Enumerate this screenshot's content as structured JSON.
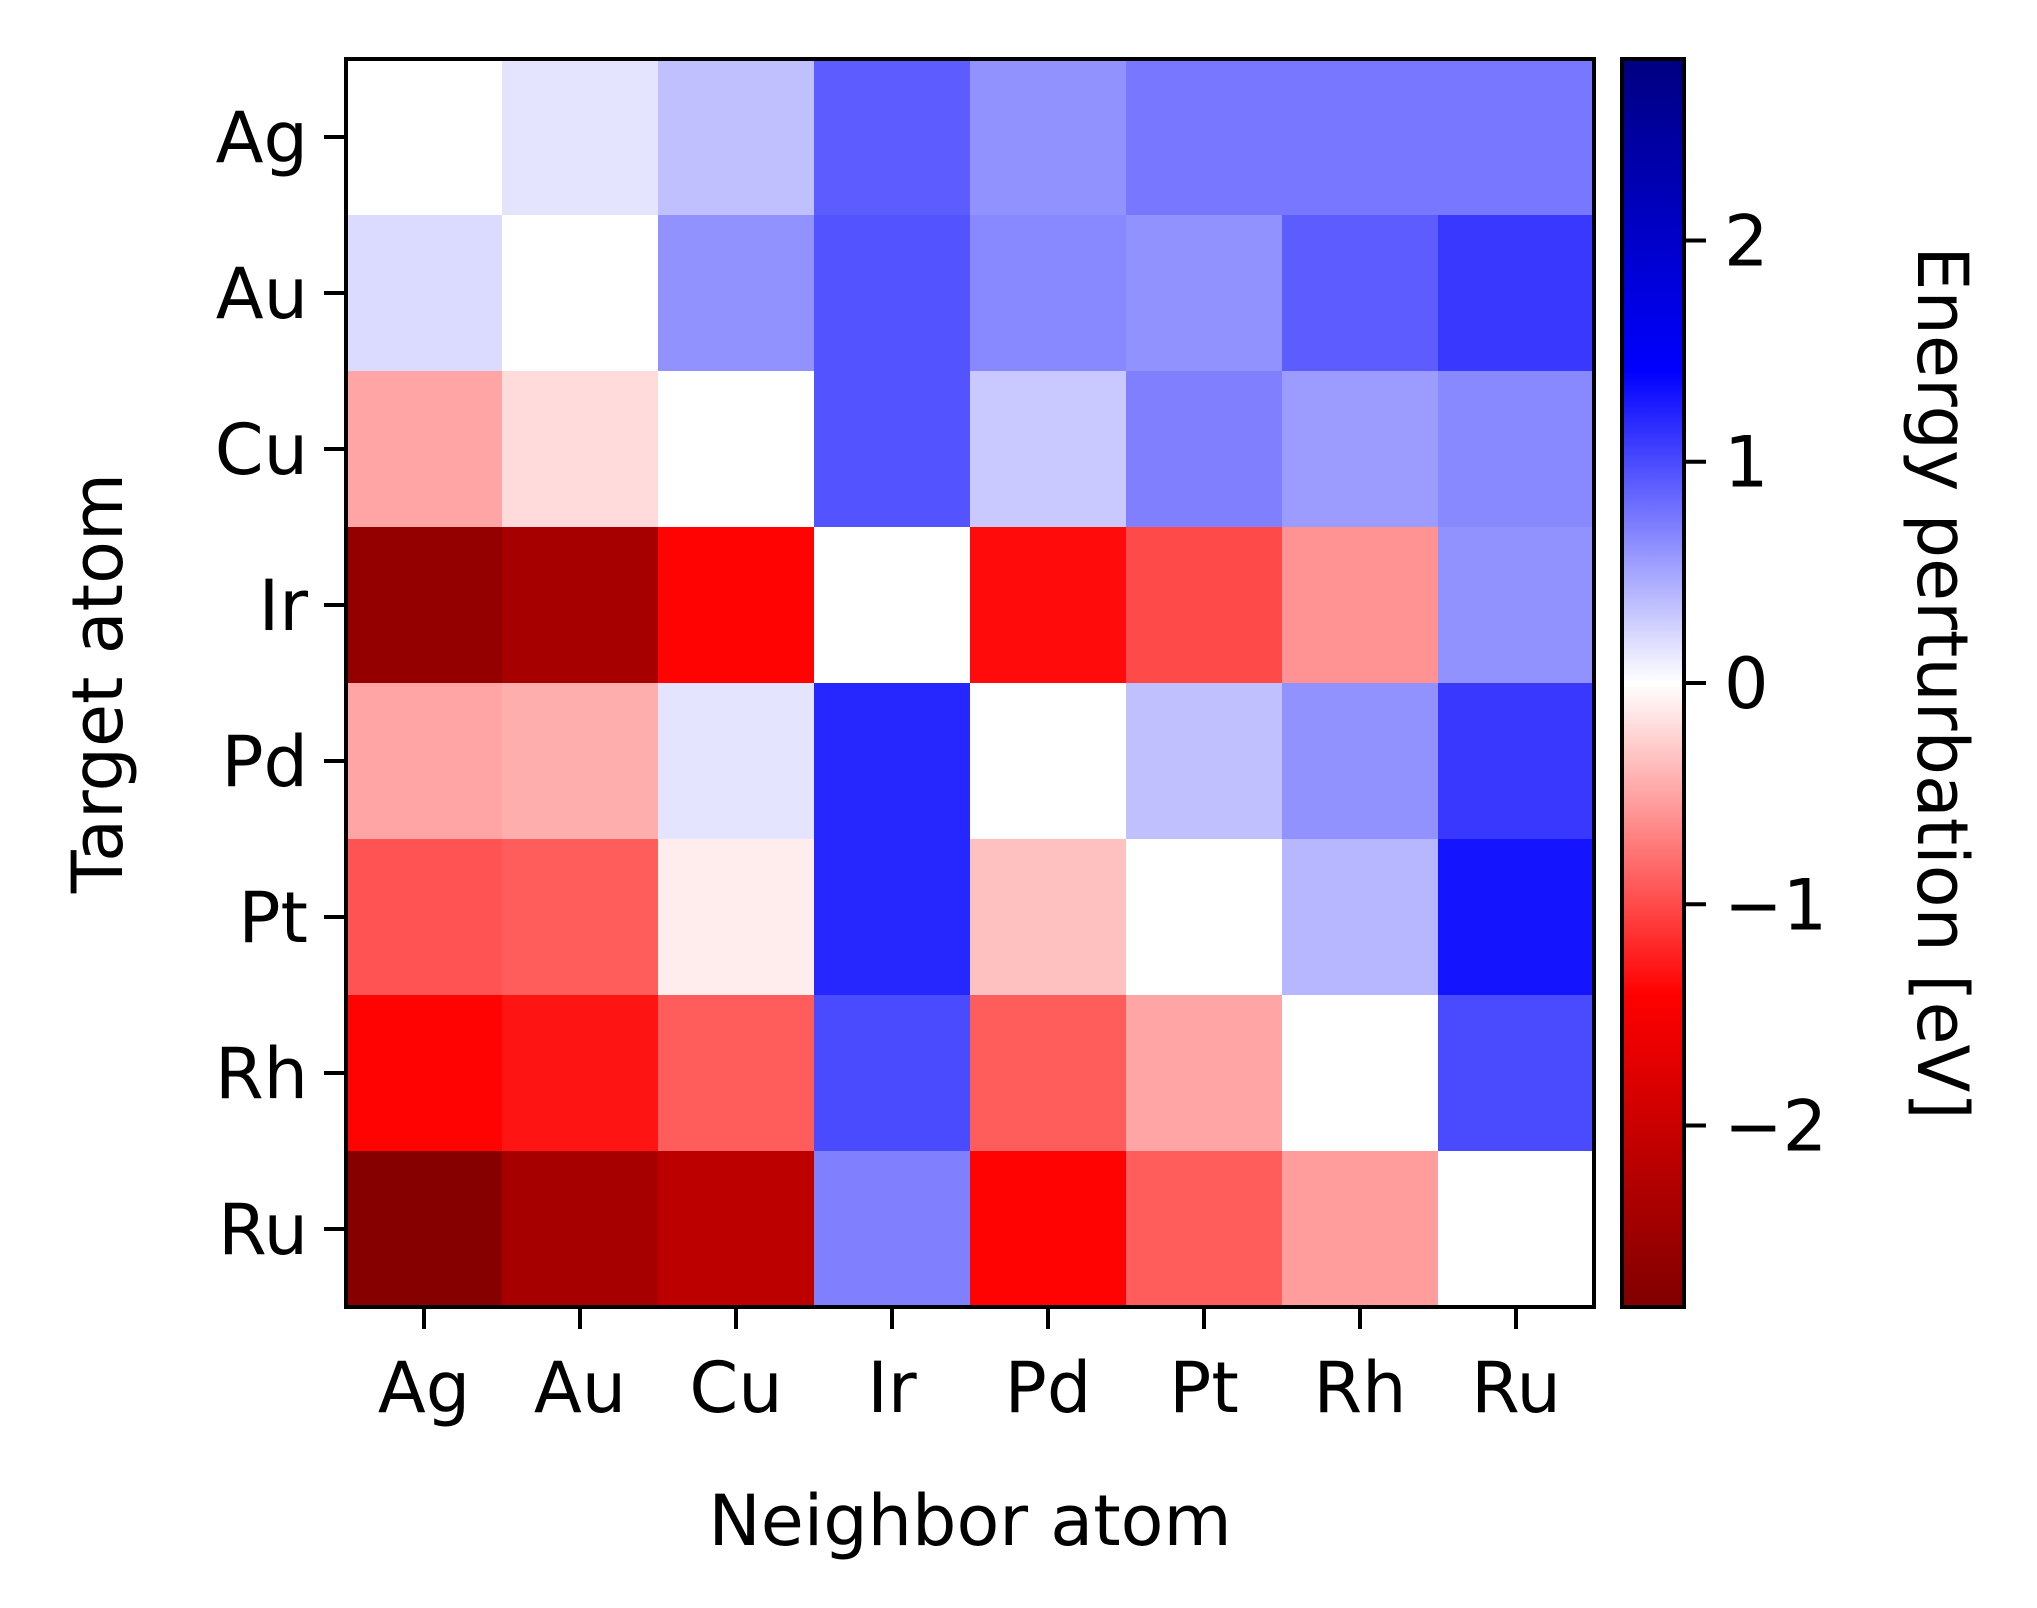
{
  "chart_data": {
    "type": "heatmap",
    "title": "",
    "xlabel": "Neighbor atom",
    "ylabel": "Target atom",
    "x_categories": [
      "Ag",
      "Au",
      "Cu",
      "Ir",
      "Pd",
      "Pt",
      "Rh",
      "Ru"
    ],
    "y_categories": [
      "Ag",
      "Au",
      "Cu",
      "Ir",
      "Pd",
      "Pt",
      "Rh",
      "Ru"
    ],
    "values": [
      [
        0.0,
        0.15,
        0.35,
        0.9,
        0.6,
        0.75,
        0.75,
        0.75
      ],
      [
        0.2,
        0.0,
        0.6,
        0.95,
        0.65,
        0.6,
        0.9,
        1.1
      ],
      [
        -0.5,
        -0.2,
        0.0,
        0.95,
        0.3,
        0.7,
        0.55,
        0.65
      ],
      [
        -2.6,
        -2.4,
        -1.4,
        0.0,
        -1.35,
        -1.0,
        -0.6,
        0.6
      ],
      [
        -0.5,
        -0.45,
        0.15,
        1.2,
        0.0,
        0.35,
        0.6,
        1.1
      ],
      [
        -0.95,
        -0.9,
        -0.1,
        1.2,
        -0.35,
        0.0,
        0.4,
        1.3
      ],
      [
        -1.4,
        -1.3,
        -0.9,
        1.0,
        -0.9,
        -0.5,
        0.0,
        1.0
      ],
      [
        -2.75,
        -2.4,
        -2.15,
        0.7,
        -1.4,
        -0.9,
        -0.55,
        0.0
      ]
    ],
    "colormap": {
      "name": "seismic_r",
      "vmin": -2.82,
      "vmax": 2.82,
      "stops": [
        "#800000",
        "#ff0000",
        "#ffffff",
        "#0000ff",
        "#000080"
      ]
    },
    "colorbar": {
      "label": "Energy perturbation [eV]",
      "ticks": [
        2,
        1,
        0,
        -1,
        -2
      ],
      "tick_labels": [
        "2",
        "1",
        "0",
        "−1",
        "−2"
      ]
    },
    "grid": false,
    "legend": "none"
  }
}
